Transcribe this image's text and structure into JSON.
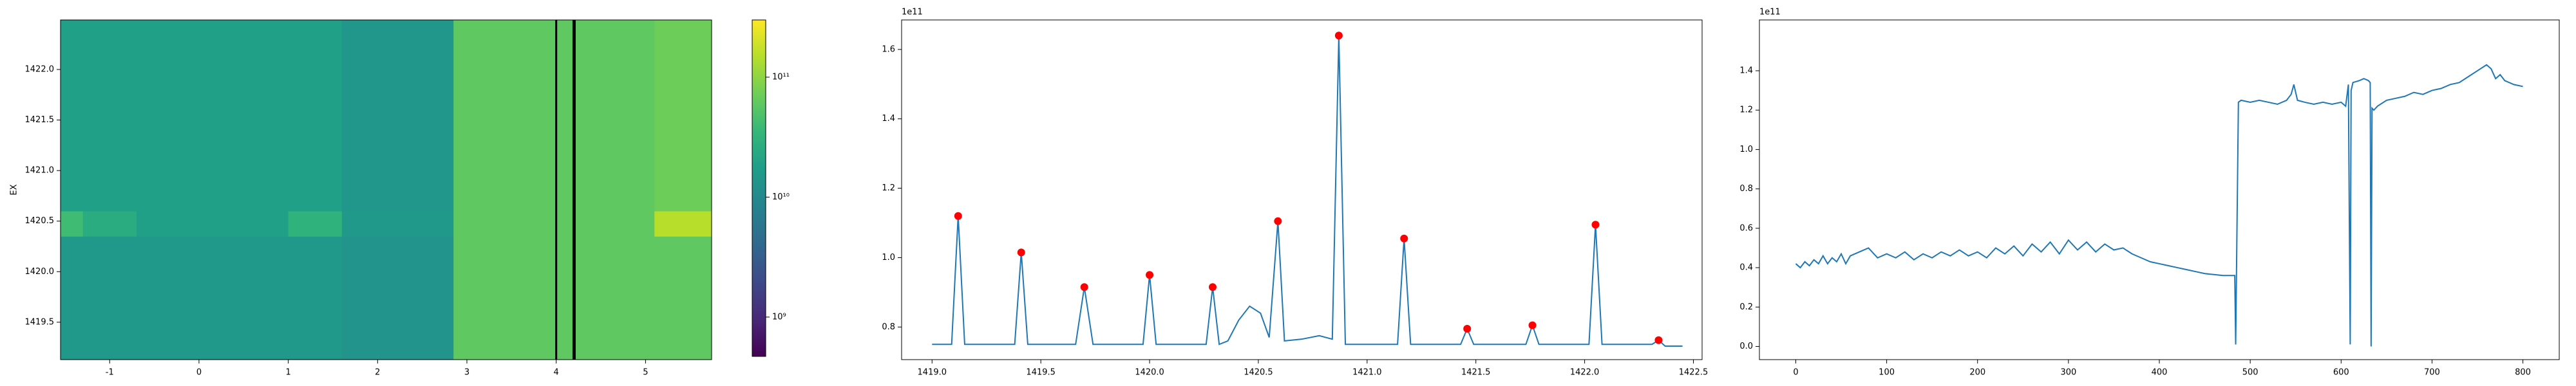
{
  "chart_data": [
    {
      "type": "heatmap",
      "ylabel": "EX",
      "xlim": [
        -1.55,
        5.74
      ],
      "ylim": [
        1419.13,
        1422.49
      ],
      "xticks": [
        -1,
        0,
        1,
        2,
        3,
        4,
        5
      ],
      "yticks": [
        1419.5,
        {
          "value": 1420.0,
          "label": "1420.0"
        },
        1420.5,
        {
          "value": 1421.0,
          "label": "1421.0"
        },
        1421.5,
        {
          "value": 1422.0,
          "label": "1422.0"
        }
      ],
      "colormap": "viridis",
      "x_edges": [
        -1.55,
        -1.3,
        -0.7,
        1.0,
        1.6,
        2.85,
        5.1,
        5.74
      ],
      "y_edges": [
        1419.13,
        1420.35,
        1420.6,
        1422.49
      ],
      "z": [
        [
          15000000000,
          15000000000,
          15000000000,
          15000000000,
          13000000000,
          60000000000,
          60000000000
        ],
        [
          40000000000,
          25000000000,
          18000000000,
          30000000000,
          15000000000,
          60000000000,
          150000000000
        ],
        [
          18000000000,
          18000000000,
          18000000000,
          18000000000,
          14000000000,
          60000000000,
          70000000000
        ]
      ],
      "vlines": [
        4.0,
        4.2
      ],
      "vline_color": "#000000",
      "colorbar": {
        "scale": "log",
        "lim": [
          470000000,
          300000000000
        ],
        "ticks": [
          {
            "value": 1000000000,
            "label": "10⁹"
          },
          {
            "value": 10000000000,
            "label": "10¹⁰"
          },
          {
            "value": 100000000000,
            "label": "10¹¹"
          }
        ]
      }
    },
    {
      "type": "line",
      "offset_label": "1e11",
      "xlim": [
        1418.86,
        1422.54
      ],
      "ylim": [
        0.706,
        1.685
      ],
      "xticks": [
        {
          "value": 1419.0,
          "label": "1419.0"
        },
        1419.5,
        {
          "value": 1420.0,
          "label": "1420.0"
        },
        1420.5,
        {
          "value": 1421.0,
          "label": "1421.0"
        },
        1421.5,
        {
          "value": 1422.0,
          "label": "1422.0"
        },
        1422.5
      ],
      "yticks": [
        0.8,
        {
          "value": 1.0,
          "label": "1.0"
        },
        1.2,
        1.4,
        1.6
      ],
      "series": [
        {
          "color": "#1f77b4",
          "mode": "line",
          "x": [
            1419.0,
            1419.09,
            1419.12,
            1419.15,
            1419.38,
            1419.41,
            1419.44,
            1419.66,
            1419.7,
            1419.74,
            1419.97,
            1420.0,
            1420.03,
            1420.26,
            1420.29,
            1420.32,
            1420.36,
            1420.41,
            1420.46,
            1420.51,
            1420.55,
            1420.59,
            1420.62,
            1420.7,
            1420.78,
            1420.84,
            1420.87,
            1420.9,
            1421.14,
            1421.17,
            1421.2,
            1421.43,
            1421.46,
            1421.49,
            1421.73,
            1421.76,
            1421.79,
            1422.02,
            1422.05,
            1422.08,
            1422.31,
            1422.34,
            1422.37,
            1422.45
          ],
          "values": [
            0.75,
            0.75,
            1.12,
            0.75,
            0.75,
            1.015,
            0.75,
            0.75,
            0.915,
            0.75,
            0.75,
            0.95,
            0.75,
            0.75,
            0.915,
            0.75,
            0.76,
            0.82,
            0.86,
            0.84,
            0.77,
            1.105,
            0.76,
            0.765,
            0.775,
            0.765,
            1.64,
            0.75,
            0.75,
            1.055,
            0.75,
            0.75,
            0.795,
            0.75,
            0.75,
            0.805,
            0.75,
            0.75,
            1.095,
            0.75,
            0.75,
            0.762,
            0.745,
            0.745
          ]
        },
        {
          "color": "#ff0000",
          "mode": "markers",
          "x": [
            1419.12,
            1419.41,
            1419.7,
            1420.0,
            1420.29,
            1420.59,
            1420.87,
            1421.17,
            1421.46,
            1421.76,
            1422.05,
            1422.34
          ],
          "values": [
            1.12,
            1.015,
            0.915,
            0.95,
            0.915,
            1.105,
            1.64,
            1.055,
            0.795,
            0.805,
            1.095,
            0.762
          ]
        }
      ]
    },
    {
      "type": "line",
      "offset_label": "1e11",
      "xlim": [
        -40,
        840
      ],
      "ylim": [
        -0.067,
        1.658
      ],
      "xticks": [
        0,
        100,
        200,
        300,
        400,
        500,
        600,
        700,
        800
      ],
      "yticks": [
        {
          "value": 0.0,
          "label": "0.0"
        },
        0.2,
        0.4,
        0.6,
        0.8,
        {
          "value": 1.0,
          "label": "1.0"
        },
        1.2,
        1.4
      ],
      "series": [
        {
          "color": "#1f77b4",
          "mode": "line",
          "x": [
            0,
            5,
            10,
            15,
            20,
            25,
            30,
            35,
            40,
            45,
            50,
            55,
            60,
            70,
            80,
            90,
            100,
            110,
            120,
            130,
            140,
            150,
            160,
            170,
            180,
            190,
            200,
            210,
            220,
            230,
            240,
            250,
            260,
            270,
            280,
            290,
            300,
            310,
            320,
            330,
            340,
            350,
            360,
            370,
            380,
            390,
            400,
            410,
            420,
            430,
            440,
            450,
            460,
            470,
            480,
            483,
            484,
            487,
            490,
            500,
            510,
            520,
            530,
            540,
            545,
            548,
            552,
            560,
            570,
            580,
            590,
            600,
            605,
            608,
            610,
            611,
            613,
            620,
            625,
            630,
            632,
            633,
            634,
            636,
            640,
            650,
            660,
            670,
            680,
            690,
            700,
            710,
            720,
            730,
            740,
            750,
            760,
            765,
            770,
            775,
            780,
            790,
            800
          ],
          "values": [
            0.42,
            0.4,
            0.43,
            0.41,
            0.44,
            0.42,
            0.46,
            0.42,
            0.45,
            0.43,
            0.47,
            0.42,
            0.46,
            0.48,
            0.5,
            0.45,
            0.47,
            0.45,
            0.48,
            0.44,
            0.47,
            0.45,
            0.48,
            0.46,
            0.49,
            0.46,
            0.48,
            0.45,
            0.5,
            0.47,
            0.51,
            0.46,
            0.52,
            0.48,
            0.53,
            0.47,
            0.54,
            0.49,
            0.53,
            0.48,
            0.52,
            0.49,
            0.5,
            0.47,
            0.45,
            0.43,
            0.42,
            0.41,
            0.4,
            0.39,
            0.38,
            0.37,
            0.365,
            0.36,
            0.36,
            0.36,
            0.01,
            1.24,
            1.25,
            1.24,
            1.25,
            1.24,
            1.23,
            1.25,
            1.28,
            1.33,
            1.25,
            1.24,
            1.23,
            1.24,
            1.23,
            1.24,
            1.22,
            1.33,
            0.01,
            1.3,
            1.34,
            1.35,
            1.36,
            1.35,
            1.34,
            0.0,
            1.21,
            1.2,
            1.22,
            1.25,
            1.26,
            1.27,
            1.29,
            1.28,
            1.3,
            1.31,
            1.33,
            1.34,
            1.37,
            1.4,
            1.43,
            1.41,
            1.36,
            1.38,
            1.35,
            1.33,
            1.32
          ]
        }
      ]
    }
  ]
}
